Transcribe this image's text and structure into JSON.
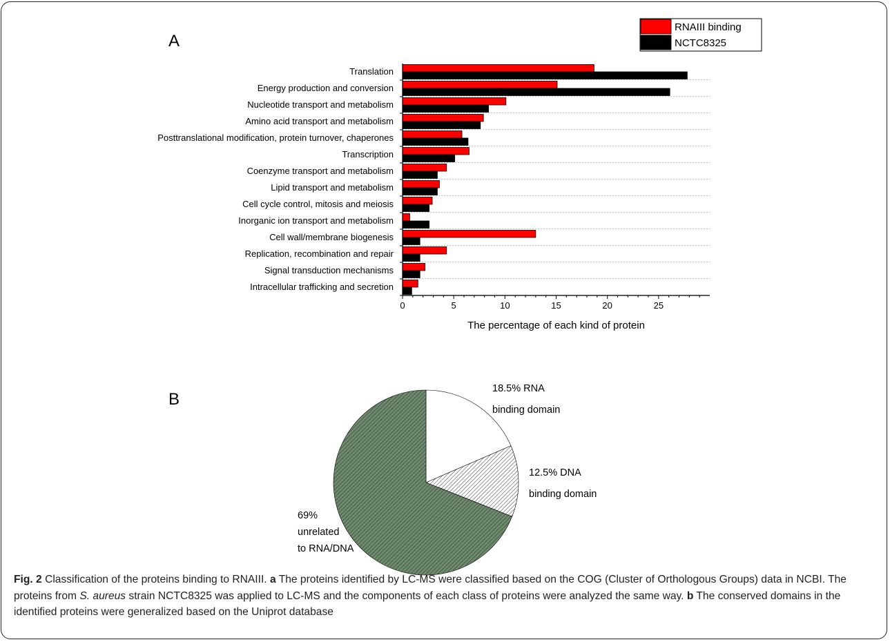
{
  "panel_a_letter": "A",
  "panel_b_letter": "B",
  "chart_data": [
    {
      "type": "bar",
      "orientation": "horizontal",
      "categories": [
        "Translation",
        "Energy production and conversion",
        "Nucleotide transport and metabolism",
        "Amino acid transport and metabolism",
        "Posttranslational modification, protein turnover, chaperones",
        "Transcription",
        "Coenzyme transport and metabolism",
        "Lipid transport and metabolism",
        "Cell cycle control, mitosis and meiosis",
        "Inorganic ion transport and metabolism",
        "Cell wall/membrane biogenesis",
        "Replication, recombination and repair",
        "Signal transduction mechanisms",
        "Intracellular trafficking and secretion"
      ],
      "series": [
        {
          "name": "RNAIII binding",
          "color": "#ff0000",
          "values": [
            18.7,
            15.1,
            10.1,
            7.9,
            5.8,
            6.5,
            4.3,
            3.6,
            2.9,
            0.7,
            13.0,
            4.3,
            2.2,
            1.5
          ]
        },
        {
          "name": "NCTC8325",
          "color": "#000000",
          "values": [
            27.8,
            26.1,
            8.4,
            7.6,
            6.4,
            5.1,
            3.4,
            3.4,
            2.6,
            2.6,
            1.7,
            1.7,
            1.7,
            0.9
          ]
        }
      ],
      "xlabel": "The percentage of each kind of protein",
      "ylabel": "",
      "xlim": [
        0,
        30
      ],
      "xticks": [
        0,
        5,
        10,
        15,
        20,
        25
      ],
      "grid": true,
      "legend_position": "top-right"
    },
    {
      "type": "pie",
      "slices": [
        {
          "label": "18.5% RNA binding domain",
          "label_lines": [
            "18.5% RNA",
            "binding domain"
          ],
          "value": 18.5,
          "fill": "white"
        },
        {
          "label": "12.5% DNA binding domain",
          "label_lines": [
            "12.5% DNA",
            "binding domain"
          ],
          "value": 12.5,
          "fill": "hatch-white"
        },
        {
          "label": "69% unrelated to RNA/DNA",
          "label_lines": [
            "69%",
            "unrelated",
            "to RNA/DNA"
          ],
          "value": 69,
          "fill": "hatch-green"
        }
      ]
    }
  ],
  "caption": {
    "fig_label": "Fig. 2",
    "text_1": " Classification of the proteins binding to RNAIII. ",
    "a_label": "a",
    "text_2": " The proteins identified by LC-MS were classified based on the COG (Cluster of Orthologous Groups) data in NCBI. The proteins from ",
    "species": "S. aureus",
    "text_3": " strain NCTC8325 was applied to LC-MS and the components of each class of proteins were analyzed the same way. ",
    "b_label": "b",
    "text_4": " The conserved domains in the identified proteins were generalized based on the Uniprot database"
  },
  "colors": {
    "hatch_green_fill": "#6e8b6e",
    "hatch_line": "#2d3a2d",
    "frame": "#222222"
  }
}
